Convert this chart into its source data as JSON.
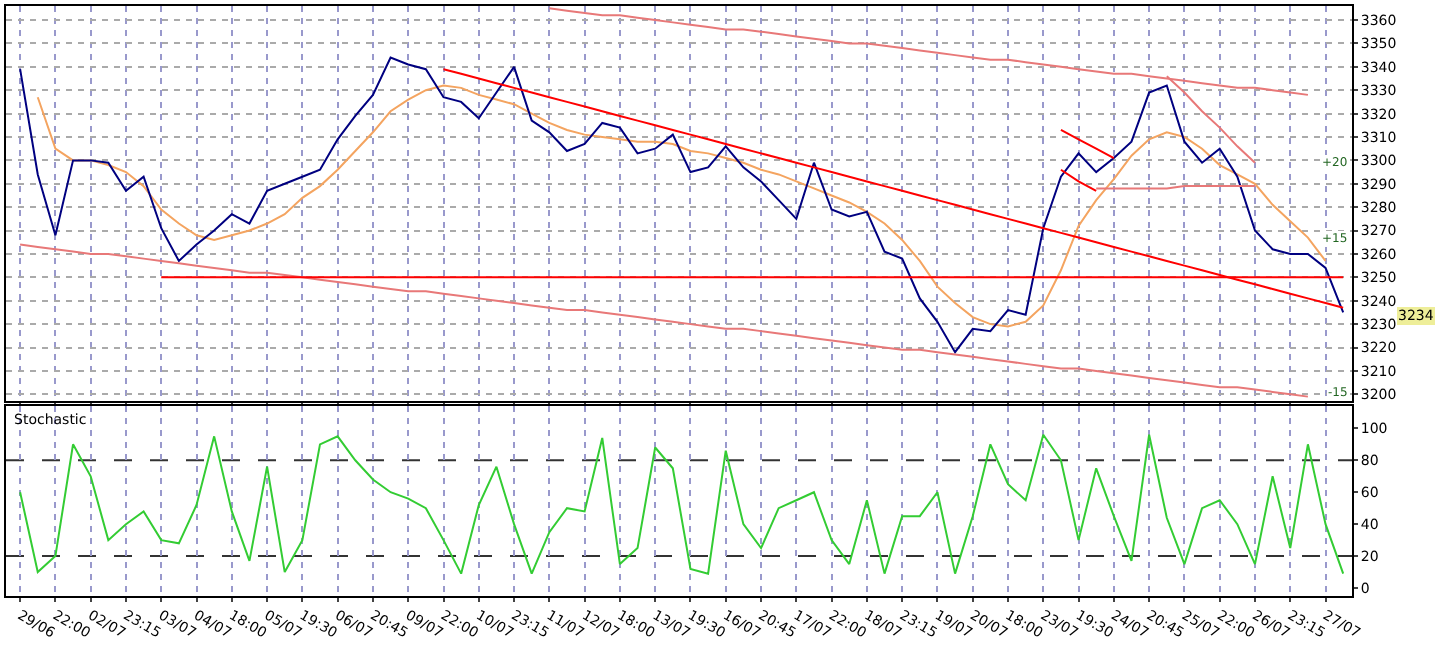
{
  "chart_data": [
    {
      "type": "line",
      "ylim": [
        3197,
        3366
      ],
      "categories": [
        null,
        null,
        null,
        null,
        null,
        null,
        null,
        null,
        null,
        null,
        null,
        null,
        null,
        null,
        null,
        null,
        null,
        null,
        null,
        null,
        null,
        null,
        null,
        null,
        null,
        null,
        null,
        null,
        null,
        null,
        null,
        null,
        null,
        null,
        null,
        null,
        null,
        null,
        null,
        null,
        null,
        null,
        null,
        null,
        null,
        null,
        null,
        null,
        null,
        null,
        null,
        null,
        null,
        null,
        null,
        null,
        null,
        null,
        null,
        null,
        null,
        null,
        null,
        null,
        null,
        null,
        null,
        null,
        null,
        null,
        null,
        null,
        null,
        null,
        null,
        null
      ],
      "yticks": [
        3200,
        3210,
        3220,
        3230,
        3240,
        3250,
        3260,
        3270,
        3280,
        3290,
        3300,
        3310,
        3320,
        3330,
        3340,
        3350,
        3360
      ],
      "tick_labels": "y",
      "grid": true,
      "marker": "none",
      "line_style": "solid",
      "series": [
        {
          "color": "#f4a460",
          "values": [
            null,
            3327,
            3305,
            3300,
            3300,
            3298,
            3295,
            3289,
            3279,
            3273,
            3268,
            3266,
            3268,
            3270,
            3273,
            3277,
            3284,
            3289,
            3296,
            3304,
            3312,
            3321,
            3326,
            3330,
            3332,
            3331,
            3328,
            3326,
            3324,
            3320,
            3316,
            3313,
            3311,
            3310,
            3309,
            3308,
            3308,
            3307,
            3304,
            3303,
            3301,
            3299,
            3296,
            3294,
            3291,
            3288,
            3285,
            3282,
            3278,
            3273,
            3266,
            3257,
            3246,
            3239,
            3233,
            3230,
            3229,
            3231,
            3238,
            3253,
            3272,
            3283,
            3292,
            3302,
            3309,
            3312,
            3310,
            3305,
            3298,
            3294,
            3290,
            3281,
            3274,
            3267,
            3257,
            null
          ]
        },
        {
          "color": "#000080",
          "values": [
            3339,
            3294,
            3268,
            3300,
            3300,
            3299,
            3287,
            3293,
            3271,
            3257,
            3264,
            3270,
            3277,
            3273,
            3287,
            3290,
            3293,
            3296,
            3309,
            3319,
            3328,
            3344,
            3341,
            3339,
            3327,
            3325,
            3318,
            3329,
            3340,
            3317,
            3312,
            3304,
            3307,
            3316,
            3314,
            3303,
            3305,
            3311,
            3295,
            3297,
            3306,
            3297,
            3291,
            3283,
            3275,
            3299,
            3279,
            3276,
            3278,
            3261,
            3258,
            3241,
            3231,
            3218,
            3228,
            3227,
            3236,
            3234,
            3271,
            3293,
            3303,
            3295,
            3301,
            3308,
            3329,
            3332,
            3308,
            3299,
            3305,
            3293,
            3270,
            3262,
            3260,
            3260,
            3254,
            3235
          ]
        },
        {
          "color": "#e87878",
          "values": [
            null,
            null,
            null,
            null,
            null,
            null,
            null,
            null,
            null,
            null,
            null,
            null,
            null,
            null,
            null,
            null,
            null,
            null,
            null,
            null,
            null,
            null,
            null,
            null,
            null,
            null,
            null,
            null,
            null,
            null,
            3365,
            3364,
            3363,
            3362,
            3362,
            3361,
            3360,
            3359,
            3358,
            3357,
            3356,
            3356,
            3355,
            3354,
            3353,
            3352,
            3351,
            3350,
            3350,
            3349,
            3348,
            3347,
            3346,
            3345,
            3344,
            3343,
            3343,
            3342,
            3341,
            3340,
            3339,
            3338,
            3337,
            3337,
            3336,
            3335,
            3334,
            3333,
            3332,
            3331,
            3331,
            3330,
            3329,
            3328,
            null,
            null
          ]
        },
        {
          "color": "#e87878",
          "values": [
            3264,
            3263,
            3262,
            3261,
            3260,
            3260,
            3259,
            3258,
            3257,
            3256,
            3255,
            3254,
            3253,
            3252,
            3252,
            3251,
            3250,
            3249,
            3248,
            3247,
            3246,
            3245,
            3244,
            3244,
            3243,
            3242,
            3241,
            3240,
            3239,
            3238,
            3237,
            3236,
            3236,
            3235,
            3234,
            3233,
            3232,
            3231,
            3230,
            3229,
            3228,
            3228,
            3227,
            3226,
            3225,
            3224,
            3223,
            3222,
            3221,
            3220,
            3219,
            3219,
            3218,
            3217,
            3216,
            3215,
            3214,
            3213,
            3212,
            3211,
            3211,
            3210,
            3209,
            3208,
            3207,
            3206,
            3205,
            3204,
            3203,
            3203,
            3202,
            3201,
            3200,
            3199,
            null,
            null
          ]
        },
        {
          "color": "#ff0000",
          "values": [
            null,
            null,
            null,
            null,
            null,
            null,
            null,
            null,
            3250,
            3250,
            3250,
            3250,
            3250,
            3250,
            3250,
            3250,
            3250,
            3250,
            3250,
            3250,
            3250,
            3250,
            3250,
            3250,
            3250,
            3250,
            3250,
            3250,
            3250,
            3250,
            3250,
            3250,
            3250,
            3250,
            3250,
            3250,
            3250,
            3250,
            3250,
            3250,
            3250,
            3250,
            3250,
            3250,
            3250,
            3250,
            3250,
            3250,
            3250,
            3250,
            3250,
            3250,
            3250,
            3250,
            3250,
            3250,
            3250,
            3250,
            3250,
            3250,
            3250,
            3250,
            3250,
            3250,
            3250,
            3250,
            3250,
            3250,
            3250,
            3250,
            3250,
            3250,
            3250,
            3250,
            3250,
            3250
          ]
        },
        {
          "color": "#ff0000",
          "values": [
            null,
            null,
            null,
            null,
            null,
            null,
            null,
            null,
            null,
            null,
            null,
            null,
            null,
            null,
            null,
            null,
            null,
            null,
            null,
            null,
            null,
            null,
            null,
            null,
            3339,
            3337,
            3335,
            3333,
            3331,
            3329,
            3327,
            3325,
            3323,
            3321,
            3319,
            3317,
            3315,
            3313,
            3311,
            3309,
            3307,
            3305,
            3303,
            3301,
            3299,
            3297,
            3295,
            3293,
            3291,
            3289,
            3287,
            3285,
            3283,
            3281,
            3279,
            3277,
            3275,
            3273,
            3271,
            3269,
            3267,
            3265,
            3263,
            3261,
            3259,
            3257,
            3255,
            3253,
            3251,
            3249,
            3247,
            3245,
            3243,
            3241,
            3239,
            3237
          ]
        },
        {
          "color": "#ff0000",
          "values": [
            null,
            null,
            null,
            null,
            null,
            null,
            null,
            null,
            null,
            null,
            null,
            null,
            null,
            null,
            null,
            null,
            null,
            null,
            null,
            null,
            null,
            null,
            null,
            null,
            null,
            null,
            null,
            null,
            null,
            null,
            null,
            null,
            null,
            null,
            null,
            null,
            null,
            null,
            null,
            null,
            null,
            null,
            null,
            null,
            null,
            null,
            null,
            null,
            null,
            null,
            null,
            null,
            null,
            null,
            null,
            null,
            null,
            null,
            null,
            3313,
            3309,
            3305,
            3301,
            null,
            null,
            null,
            null,
            null,
            null,
            null,
            null,
            null,
            null,
            null,
            null,
            null
          ]
        },
        {
          "color": "#ff0000",
          "values": [
            null,
            null,
            null,
            null,
            null,
            null,
            null,
            null,
            null,
            null,
            null,
            null,
            null,
            null,
            null,
            null,
            null,
            null,
            null,
            null,
            null,
            null,
            null,
            null,
            null,
            null,
            null,
            null,
            null,
            null,
            null,
            null,
            null,
            null,
            null,
            null,
            null,
            null,
            null,
            null,
            null,
            null,
            null,
            null,
            null,
            null,
            null,
            null,
            null,
            null,
            null,
            null,
            null,
            null,
            null,
            null,
            null,
            null,
            null,
            3296,
            3291,
            3287,
            null,
            null,
            null,
            null,
            null,
            null,
            null,
            null,
            null,
            null,
            null,
            null,
            null,
            null
          ]
        },
        {
          "color": "#e87878",
          "values": [
            null,
            null,
            null,
            null,
            null,
            null,
            null,
            null,
            null,
            null,
            null,
            null,
            null,
            null,
            null,
            null,
            null,
            null,
            null,
            null,
            null,
            null,
            null,
            null,
            null,
            null,
            null,
            null,
            null,
            null,
            null,
            null,
            null,
            null,
            null,
            null,
            null,
            null,
            null,
            null,
            null,
            null,
            null,
            null,
            null,
            null,
            null,
            null,
            null,
            null,
            null,
            null,
            null,
            null,
            null,
            null,
            null,
            null,
            null,
            null,
            null,
            3288,
            3288,
            3288,
            3288,
            3288,
            3289,
            3289,
            3289,
            3289,
            3289,
            null,
            null,
            null,
            null,
            null
          ]
        },
        {
          "color": "#e87878",
          "values": [
            null,
            null,
            null,
            null,
            null,
            null,
            null,
            null,
            null,
            null,
            null,
            null,
            null,
            null,
            null,
            null,
            null,
            null,
            null,
            null,
            null,
            null,
            null,
            null,
            null,
            null,
            null,
            null,
            null,
            null,
            null,
            null,
            null,
            null,
            null,
            null,
            null,
            null,
            null,
            null,
            null,
            null,
            null,
            null,
            null,
            null,
            null,
            null,
            null,
            null,
            null,
            null,
            null,
            null,
            null,
            null,
            null,
            null,
            null,
            null,
            null,
            null,
            null,
            null,
            null,
            3336,
            3329,
            3321,
            3314,
            3306,
            3299,
            null,
            null,
            null,
            null,
            null
          ]
        }
      ],
      "annotations": [
        "+20",
        "+15",
        "-15",
        "3234"
      ]
    },
    {
      "type": "line",
      "title": "Stochastic",
      "ylim": [
        -5,
        114
      ],
      "categories": [
        "29/06",
        null,
        "22:00",
        null,
        "02/07",
        null,
        "23:15",
        null,
        "03/07",
        null,
        "04/07",
        null,
        "18:00",
        null,
        "05/07",
        null,
        "19:30",
        null,
        "06/07",
        null,
        "20:45",
        null,
        "09/07",
        null,
        "22:00",
        null,
        "10/07",
        null,
        "23:15",
        null,
        "11/07",
        null,
        "12/07",
        null,
        "18:00",
        null,
        "13/07",
        null,
        "19:30",
        null,
        "16/07",
        null,
        "20:45",
        null,
        "17/07",
        null,
        "22:00",
        null,
        "18/07",
        null,
        "23:15",
        null,
        "19/07",
        null,
        "20/07",
        null,
        "18:00",
        null,
        "23/07",
        null,
        "19:30",
        null,
        "24/07",
        null,
        "20:45",
        null,
        "25/07",
        null,
        "22:00",
        null,
        "26/07",
        null,
        "23:15",
        null,
        "27/07",
        null
      ],
      "yticks": [
        0,
        20,
        40,
        60,
        80,
        100
      ],
      "grid": "x",
      "marker": "none",
      "line_style": "solid",
      "ref_lines": [
        {
          "axis": "y",
          "value": 20,
          "color": "#333333",
          "line_style": "dashed"
        },
        {
          "axis": "y",
          "value": 80,
          "color": "#333333",
          "line_style": "dashed"
        }
      ],
      "series": [
        {
          "color": "#33cc33",
          "values": [
            60,
            10,
            20,
            90,
            70,
            30,
            40,
            48,
            30,
            28,
            52,
            95,
            48,
            17,
            76,
            10,
            30,
            90,
            95,
            80,
            68,
            60,
            56,
            50,
            30,
            9,
            52,
            76,
            40,
            9,
            35,
            50,
            48,
            94,
            15,
            25,
            88,
            75,
            12,
            9,
            86,
            40,
            25,
            50,
            55,
            60,
            30,
            15,
            55,
            9,
            45,
            45,
            60,
            9,
            45,
            90,
            65,
            55,
            96,
            80,
            30,
            75,
            45,
            17,
            96,
            44,
            15,
            50,
            55,
            40,
            15,
            70,
            25,
            90,
            40,
            9
          ]
        }
      ]
    }
  ]
}
